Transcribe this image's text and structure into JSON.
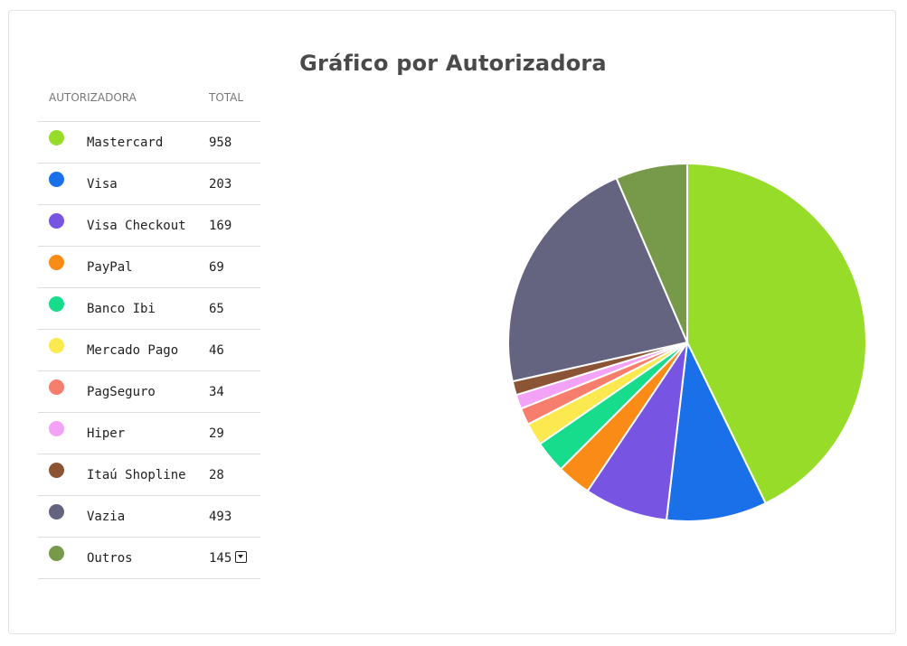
{
  "title": "Gráfico por Autorizadora",
  "table": {
    "header_name": "AUTORIZADORA",
    "header_total": "TOTAL"
  },
  "chart_data": {
    "type": "pie",
    "title": "Gráfico por Autorizadora",
    "slices": [
      {
        "label": "Mastercard",
        "value": 958,
        "color": "#96dc28"
      },
      {
        "label": "Visa",
        "value": 203,
        "color": "#1a70e8"
      },
      {
        "label": "Visa Checkout",
        "value": 169,
        "color": "#7754e2"
      },
      {
        "label": "PayPal",
        "value": 69,
        "color": "#fa8b16"
      },
      {
        "label": "Banco Ibi",
        "value": 65,
        "color": "#16dc8c"
      },
      {
        "label": "Mercado Pago",
        "value": 46,
        "color": "#fce94f"
      },
      {
        "label": "PagSeguro",
        "value": 34,
        "color": "#f77d6c"
      },
      {
        "label": "Hiper",
        "value": 29,
        "color": "#f3a3f5"
      },
      {
        "label": "Itaú Shopline",
        "value": 28,
        "color": "#8a5435"
      },
      {
        "label": "Vazia",
        "value": 493,
        "color": "#646481"
      },
      {
        "label": "Outros",
        "value": 145,
        "color": "#769a4a"
      }
    ]
  },
  "outros_toggle_icon": "caret-down-square-icon"
}
